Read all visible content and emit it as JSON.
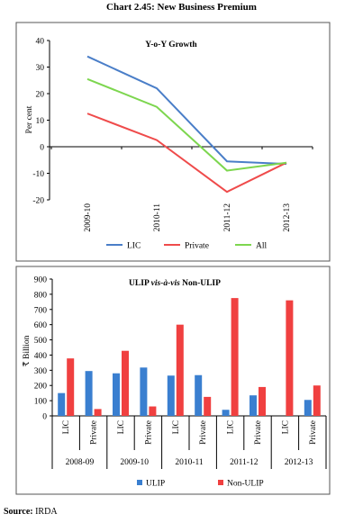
{
  "header": {
    "title": "Chart 2.45: New Business Premium"
  },
  "footer": {
    "source_label": "Source:",
    "source_value": "IRDA"
  },
  "chart_data": [
    {
      "type": "line",
      "title": "Y-o-Y Growth",
      "ylabel": "Per cent",
      "xlabel": "",
      "x": [
        "2009-10",
        "2010-11",
        "2011-12",
        "2012-13"
      ],
      "ylim": [
        -20,
        40
      ],
      "yticks": [
        40,
        30,
        20,
        10,
        0,
        -10,
        -20
      ],
      "grid": false,
      "legend_position": "bottom",
      "series": [
        {
          "name": "LIC",
          "color": "#4a7ec8",
          "values": [
            34,
            22,
            -5.5,
            -6.5
          ]
        },
        {
          "name": "Private",
          "color": "#ef4b4b",
          "values": [
            12.5,
            2.5,
            -17,
            -6
          ]
        },
        {
          "name": "All",
          "color": "#7dd64f",
          "values": [
            25.5,
            15,
            -9,
            -6
          ]
        }
      ]
    },
    {
      "type": "bar",
      "title": "ULIP vis-à-vis Non-ULIP",
      "title_parts": [
        {
          "text": "ULIP ",
          "italic": false
        },
        {
          "text": "vis-à-vis",
          "italic": true
        },
        {
          "text": " Non-ULIP",
          "italic": false
        }
      ],
      "ylabel": "₹ Billion",
      "xlabel": "",
      "ylim": [
        0,
        900
      ],
      "yticks": [
        900,
        800,
        700,
        600,
        500,
        400,
        300,
        200,
        100,
        0
      ],
      "grid": false,
      "legend_position": "bottom",
      "groups": [
        "2008-09",
        "2009-10",
        "2010-11",
        "2011-12",
        "2012-13"
      ],
      "subcategories": [
        "LIC",
        "Private"
      ],
      "series": [
        {
          "name": "ULIP",
          "color": "#3a7fd0",
          "values": [
            [
              150,
              295
            ],
            [
              280,
              318
            ],
            [
              265,
              268
            ],
            [
              40,
              135
            ],
            [
              0,
              105
            ]
          ]
        },
        {
          "name": "Non-ULIP",
          "color": "#f04040",
          "values": [
            [
              378,
              45
            ],
            [
              428,
              62
            ],
            [
              600,
              125
            ],
            [
              775,
              190
            ],
            [
              760,
              200
            ]
          ]
        }
      ]
    }
  ]
}
